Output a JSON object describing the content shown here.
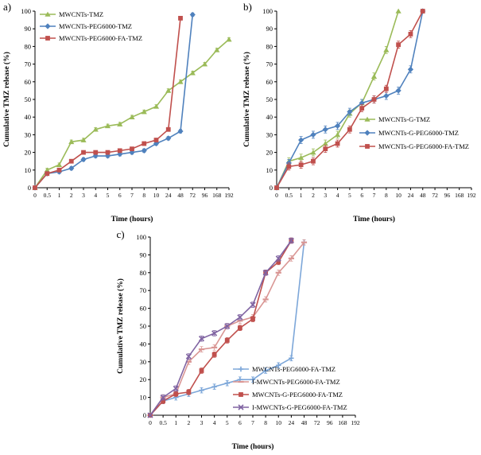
{
  "figure": {
    "background": "#ffffff",
    "panels": [
      {
        "id": "a",
        "label": "a)"
      },
      {
        "id": "b",
        "label": "b)"
      },
      {
        "id": "c",
        "label": "c)"
      }
    ]
  },
  "chart_data": [
    {
      "type": "line",
      "panel": "a",
      "title": "",
      "xlabel": "Time (hours)",
      "ylabel": "Cumulative TMZ release (%)",
      "ylim": [
        0,
        100
      ],
      "ytick_step": 10,
      "grid": false,
      "legend_position": "top-left-inside",
      "categories": [
        "0",
        "0.5",
        "1",
        "2",
        "3",
        "4",
        "5",
        "6",
        "7",
        "8",
        "10",
        "24",
        "48",
        "72",
        "96",
        "168",
        "192"
      ],
      "series": [
        {
          "name": "MWCNTs-TMZ",
          "color": "#9BBB59",
          "marker": "triangle",
          "err": 1,
          "values": [
            0,
            10,
            13,
            26,
            27,
            33,
            35,
            36,
            40,
            43,
            46,
            55,
            60,
            65,
            70,
            78,
            84
          ]
        },
        {
          "name": "MWCNTs-PEG6000-TMZ",
          "color": "#4F81BD",
          "marker": "diamond",
          "err": 1,
          "values": [
            0,
            8,
            9,
            11,
            16,
            18,
            18,
            19,
            20,
            21,
            25,
            28,
            32,
            98,
            null,
            null,
            null
          ]
        },
        {
          "name": "MWCNTs-PEG6000-FA-TMZ",
          "color": "#C0504D",
          "marker": "square",
          "err": 1,
          "values": [
            0,
            8,
            10,
            15,
            20,
            20,
            20,
            21,
            22,
            25,
            27,
            33,
            96,
            null,
            null,
            null,
            null
          ]
        }
      ]
    },
    {
      "type": "line",
      "panel": "b",
      "title": "",
      "xlabel": "Time (hours)",
      "ylabel": "Cumulative TMZ release (%)",
      "ylim": [
        0,
        100
      ],
      "ytick_step": 10,
      "grid": false,
      "legend_position": "middle-right-inside",
      "categories": [
        "0",
        "0.5",
        "1",
        "2",
        "3",
        "4",
        "5",
        "6",
        "7",
        "8",
        "10",
        "24",
        "48",
        "72",
        "96",
        "168",
        "192"
      ],
      "series": [
        {
          "name": "MWCNTs-G-TMZ",
          "color": "#9BBB59",
          "marker": "triangle",
          "err": 2,
          "values": [
            0,
            15,
            17,
            20,
            25,
            30,
            42,
            48,
            63,
            78,
            100,
            null,
            null,
            null,
            null,
            null,
            null
          ]
        },
        {
          "name": "MWCNTs-G-PEG6000-TMZ",
          "color": "#4F81BD",
          "marker": "diamond",
          "err": 2,
          "values": [
            0,
            14,
            27,
            30,
            33,
            35,
            43,
            48,
            50,
            52,
            55,
            67,
            100,
            null,
            null,
            null,
            null
          ]
        },
        {
          "name": "MWCNTs-G-PEG6000-FA-TMZ",
          "color": "#C0504D",
          "marker": "square",
          "err": 2,
          "values": [
            0,
            12,
            13,
            15,
            22,
            25,
            33,
            45,
            50,
            56,
            81,
            87,
            100,
            null,
            null,
            null,
            null
          ]
        }
      ]
    },
    {
      "type": "line",
      "panel": "c",
      "title": "",
      "xlabel": "Time (hours)",
      "ylabel": "Cumulative TMZ release (%)",
      "ylim": [
        0,
        100
      ],
      "ytick_step": 10,
      "grid": false,
      "legend_position": "bottom-right-inside",
      "categories": [
        "0",
        "0.5",
        "1",
        "2",
        "3",
        "4",
        "5",
        "6",
        "7",
        "8",
        "10",
        "24",
        "48",
        "72",
        "96",
        "168",
        "192"
      ],
      "series": [
        {
          "name": "MWCNTs-PEG6000-FA-TMZ",
          "color": "#7DA7D9",
          "marker": "plus",
          "err": 1.5,
          "values": [
            0,
            8,
            10,
            12,
            14,
            16,
            18,
            20,
            20,
            25,
            28,
            32,
            97,
            null,
            null,
            null,
            null
          ]
        },
        {
          "name": "I-MWCNTs-PEG6000-FA-TMZ",
          "color": "#D99694",
          "marker": "dash",
          "err": 1.5,
          "values": [
            0,
            10,
            12,
            30,
            37,
            38,
            50,
            53,
            55,
            65,
            80,
            88,
            97,
            null,
            null,
            null,
            null
          ]
        },
        {
          "name": "MWCNTs-G-PEG6000-FA-TMZ",
          "color": "#C0504D",
          "marker": "square",
          "err": 1.5,
          "values": [
            0,
            8,
            12,
            13,
            25,
            34,
            42,
            49,
            54,
            80,
            86,
            98,
            null,
            null,
            null,
            null,
            null
          ]
        },
        {
          "name": "I-MWCNTs-G-PEG6000-FA-TMZ",
          "color": "#8064A2",
          "marker": "x",
          "err": 1.5,
          "values": [
            0,
            10,
            15,
            33,
            43,
            46,
            50,
            55,
            62,
            80,
            88,
            98,
            null,
            null,
            null,
            null,
            null
          ]
        }
      ]
    }
  ]
}
